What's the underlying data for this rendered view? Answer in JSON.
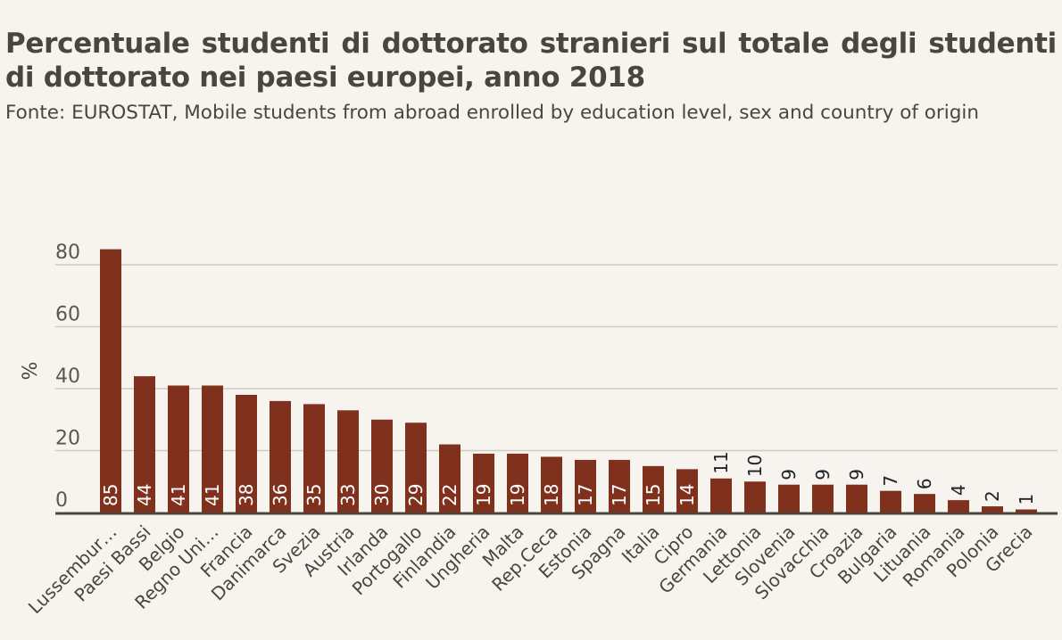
{
  "title": "Percentuale studenti di dottorato stranieri sul totale degli studenti di dottorato nei paesi europei, anno 2018",
  "subtitle": "Fonte: EUROSTAT, Mobile students from abroad enrolled by education level, sex and country of origin",
  "colors": {
    "bar": "#7f311d",
    "grid": "#cfcac3",
    "axis": "#4a4541",
    "background": "#f7f4ef"
  },
  "chart_data": {
    "type": "bar",
    "title": "Percentuale studenti di dottorato stranieri sul totale degli studenti di dottorato nei paesi europei, anno 2018",
    "xlabel": "",
    "ylabel": "%",
    "ylim": [
      0,
      80
    ],
    "yticks": [
      0,
      20,
      40,
      60,
      80
    ],
    "grid": true,
    "categories": [
      "Lussembur…",
      "Paesi Bassi",
      "Belgio",
      "Regno Uni…",
      "Francia",
      "Danimarca",
      "Svezia",
      "Austria",
      "Irlanda",
      "Portogallo",
      "Finlandia",
      "Ungheria",
      "Malta",
      "Rep.Ceca",
      "Estonia",
      "Spagna",
      "Italia",
      "Cipro",
      "Germania",
      "Lettonia",
      "Slovenia",
      "Slovacchia",
      "Croazia",
      "Bulgaria",
      "Lituania",
      "Romania",
      "Polonia",
      "Grecia"
    ],
    "values": [
      85,
      44,
      41,
      41,
      38,
      36,
      35,
      33,
      30,
      29,
      22,
      19,
      19,
      18,
      17,
      17,
      15,
      14,
      11,
      10,
      9,
      9,
      9,
      7,
      6,
      4,
      2,
      1
    ]
  }
}
